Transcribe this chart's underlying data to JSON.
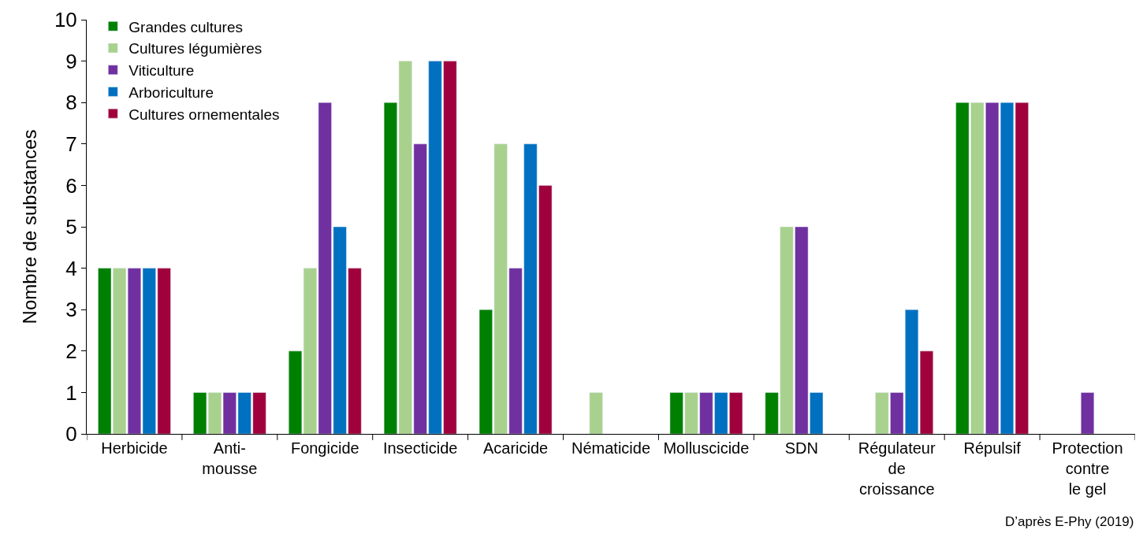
{
  "chart_data": {
    "type": "bar",
    "ylabel": "Nombre de substances",
    "categories": [
      "Herbicide",
      "Anti-\nmousse",
      "Fongicide",
      "Insecticide",
      "Acaricide",
      "Nématicide",
      "Molluscicide",
      "SDN",
      "Régulateur\nde\ncroissance",
      "Répulsif",
      "Protection\ncontre\nle gel"
    ],
    "series": [
      {
        "name": "Grandes cultures",
        "color": "#008000",
        "values": [
          4,
          1,
          2,
          8,
          3,
          null,
          1,
          1,
          null,
          8,
          null
        ]
      },
      {
        "name": "Cultures légumières",
        "color": "#a9d18e",
        "values": [
          4,
          1,
          4,
          9,
          7,
          1,
          1,
          5,
          1,
          8,
          null
        ]
      },
      {
        "name": "Viticulture",
        "color": "#7030a0",
        "values": [
          4,
          1,
          8,
          7,
          4,
          null,
          1,
          5,
          1,
          8,
          1
        ]
      },
      {
        "name": "Arboriculture",
        "color": "#0070c0",
        "values": [
          4,
          1,
          5,
          9,
          7,
          null,
          1,
          1,
          3,
          8,
          null
        ]
      },
      {
        "name": "Cultures ornementales",
        "color": "#a0003c",
        "values": [
          4,
          1,
          4,
          9,
          6,
          null,
          1,
          null,
          2,
          8,
          null
        ]
      }
    ],
    "ylim": [
      0,
      10
    ],
    "yticks": [
      0,
      1,
      2,
      3,
      4,
      5,
      6,
      7,
      8,
      9,
      10
    ],
    "grid": false,
    "legend": "top left",
    "annotations": [
      "D’après E-Phy (2019)"
    ]
  }
}
